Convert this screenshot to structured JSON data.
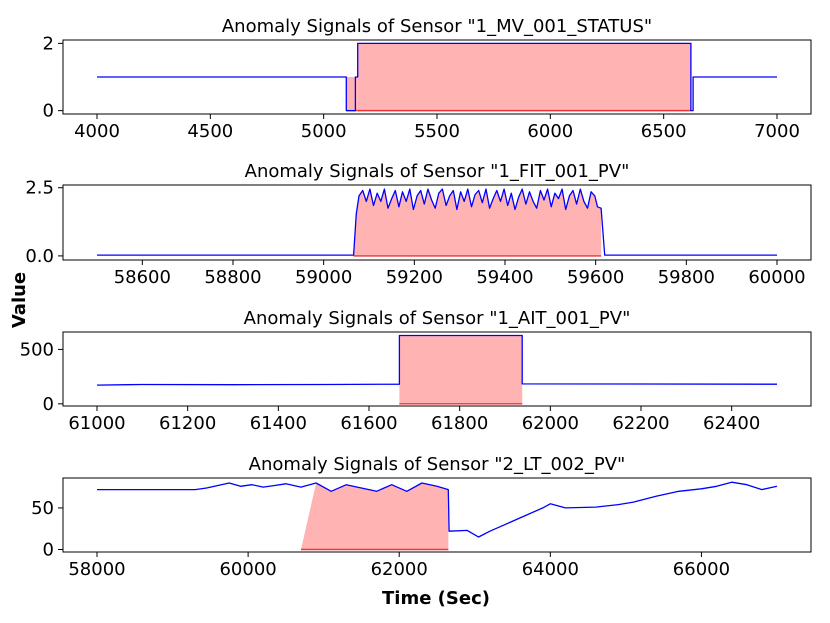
{
  "figure": {
    "xlabel": "Time (Sec)",
    "ylabel": "Value",
    "colors": {
      "signal": "#0000ff",
      "anomaly_fill": "#ffb3b3",
      "anomaly_edge": "#e8353a"
    }
  },
  "chart_data": [
    {
      "type": "line",
      "title": "Anomaly Signals of Sensor \"1_MV_001_STATUS\"",
      "xlim": [
        3850,
        7150
      ],
      "ylim": [
        -0.1,
        2.1
      ],
      "xticks": [
        4000,
        4500,
        5000,
        5500,
        6000,
        6500,
        7000
      ],
      "yticks": [
        0,
        2
      ],
      "grid": false,
      "series": [
        {
          "x": [
            4000,
            5100,
            5100,
            5140,
            5140,
            5150,
            5150,
            6620,
            6620,
            6630,
            6630,
            7000
          ],
          "y": [
            1,
            1,
            0,
            0,
            1,
            1,
            2,
            2,
            0,
            0,
            1,
            1
          ]
        }
      ],
      "anomaly_regions": [
        {
          "x": [
            5100,
            5150
          ],
          "y": [
            1,
            1
          ]
        },
        {
          "x": [
            5150,
            6620
          ],
          "y": [
            2,
            2
          ]
        }
      ]
    },
    {
      "type": "line",
      "title": "Anomaly Signals of Sensor \"1_FIT_001_PV\"",
      "xlim": [
        58425,
        60075
      ],
      "ylim": [
        -0.15,
        2.6
      ],
      "xticks": [
        58600,
        58800,
        59000,
        59200,
        59400,
        59600,
        59800,
        60000
      ],
      "yticks": [
        0.0,
        2.5
      ],
      "ytick_labels": [
        "0.0",
        "2.5"
      ],
      "grid": false,
      "series": [
        {
          "x": [
            58500,
            59066,
            59072,
            59078,
            59086,
            59094,
            59102,
            59110,
            59118,
            59126,
            59134,
            59142,
            59150,
            59158,
            59166,
            59174,
            59182,
            59190,
            59198,
            59206,
            59214,
            59222,
            59230,
            59238,
            59246,
            59254,
            59262,
            59270,
            59278,
            59286,
            59294,
            59302,
            59310,
            59318,
            59326,
            59334,
            59342,
            59350,
            59358,
            59366,
            59374,
            59382,
            59390,
            59398,
            59406,
            59414,
            59422,
            59430,
            59438,
            59446,
            59454,
            59462,
            59470,
            59478,
            59486,
            59494,
            59502,
            59510,
            59518,
            59526,
            59534,
            59542,
            59550,
            59558,
            59566,
            59574,
            59582,
            59590,
            59598,
            59604,
            59612,
            59620,
            60000
          ],
          "y": [
            0.03,
            0.03,
            1.55,
            2.2,
            2.4,
            2.0,
            2.45,
            1.85,
            2.3,
            2.0,
            2.45,
            1.75,
            2.1,
            2.4,
            1.8,
            2.35,
            2.0,
            2.45,
            1.7,
            2.2,
            2.4,
            1.9,
            2.45,
            2.05,
            1.75,
            2.3,
            2.45,
            1.85,
            2.2,
            2.4,
            1.7,
            2.35,
            2.0,
            2.45,
            1.8,
            2.25,
            2.4,
            1.95,
            2.45,
            1.75,
            2.1,
            2.4,
            2.0,
            2.45,
            1.85,
            2.3,
            1.7,
            2.15,
            2.45,
            1.9,
            2.35,
            2.0,
            1.75,
            2.4,
            2.05,
            2.45,
            1.8,
            2.3,
            2.1,
            2.45,
            1.7,
            2.2,
            2.4,
            1.9,
            2.45,
            2.0,
            1.75,
            2.35,
            2.2,
            1.8,
            1.75,
            0.03,
            0.03
          ]
        }
      ],
      "anomaly_region": {
        "x": [
          59066,
          59612
        ]
      }
    },
    {
      "type": "line",
      "title": "Anomaly Signals of Sensor \"1_AIT_001_PV\"",
      "xlim": [
        60925,
        62575
      ],
      "ylim": [
        -20,
        660
      ],
      "xticks": [
        61000,
        61200,
        61400,
        61600,
        61800,
        62000,
        62200,
        62400
      ],
      "yticks": [
        0,
        500
      ],
      "grid": false,
      "series": [
        {
          "x": [
            61000,
            61100,
            61300,
            61500,
            61667,
            61667,
            61938,
            61938,
            62200,
            62500
          ],
          "y": [
            172,
            178,
            176,
            178,
            180,
            628,
            628,
            183,
            182,
            180
          ]
        }
      ],
      "anomaly_region": {
        "x": [
          61667,
          61938
        ],
        "y_top": 628
      }
    },
    {
      "type": "line",
      "title": "Anomaly Signals of Sensor \"2_LT_002_PV\"",
      "xlim": [
        57550,
        67450
      ],
      "ylim": [
        -3,
        86
      ],
      "xticks": [
        58000,
        60000,
        62000,
        64000,
        66000
      ],
      "yticks": [
        0,
        50
      ],
      "grid": false,
      "series": [
        {
          "x": [
            58000,
            59300,
            59450,
            59600,
            59750,
            59900,
            60050,
            60200,
            60350,
            60500,
            60700,
            60900,
            61100,
            61300,
            61500,
            61700,
            61900,
            62100,
            62300,
            62500,
            62650,
            62660,
            62900,
            63050,
            63200,
            63600,
            63900,
            64000,
            64200,
            64600,
            64900,
            65100,
            65400,
            65700,
            66000,
            66200,
            66400,
            66600,
            66800,
            67000
          ],
          "y": [
            72,
            72,
            74,
            77,
            80,
            76,
            78,
            75,
            77,
            79,
            75,
            80,
            70,
            78,
            74,
            70,
            78,
            70,
            80,
            76,
            72,
            22,
            23,
            15,
            22,
            38,
            50,
            55,
            50,
            51,
            54,
            57,
            64,
            70,
            73,
            76,
            81,
            78,
            72,
            76
          ]
        }
      ],
      "anomaly_region": {
        "x": [
          60700,
          62650
        ]
      }
    }
  ]
}
